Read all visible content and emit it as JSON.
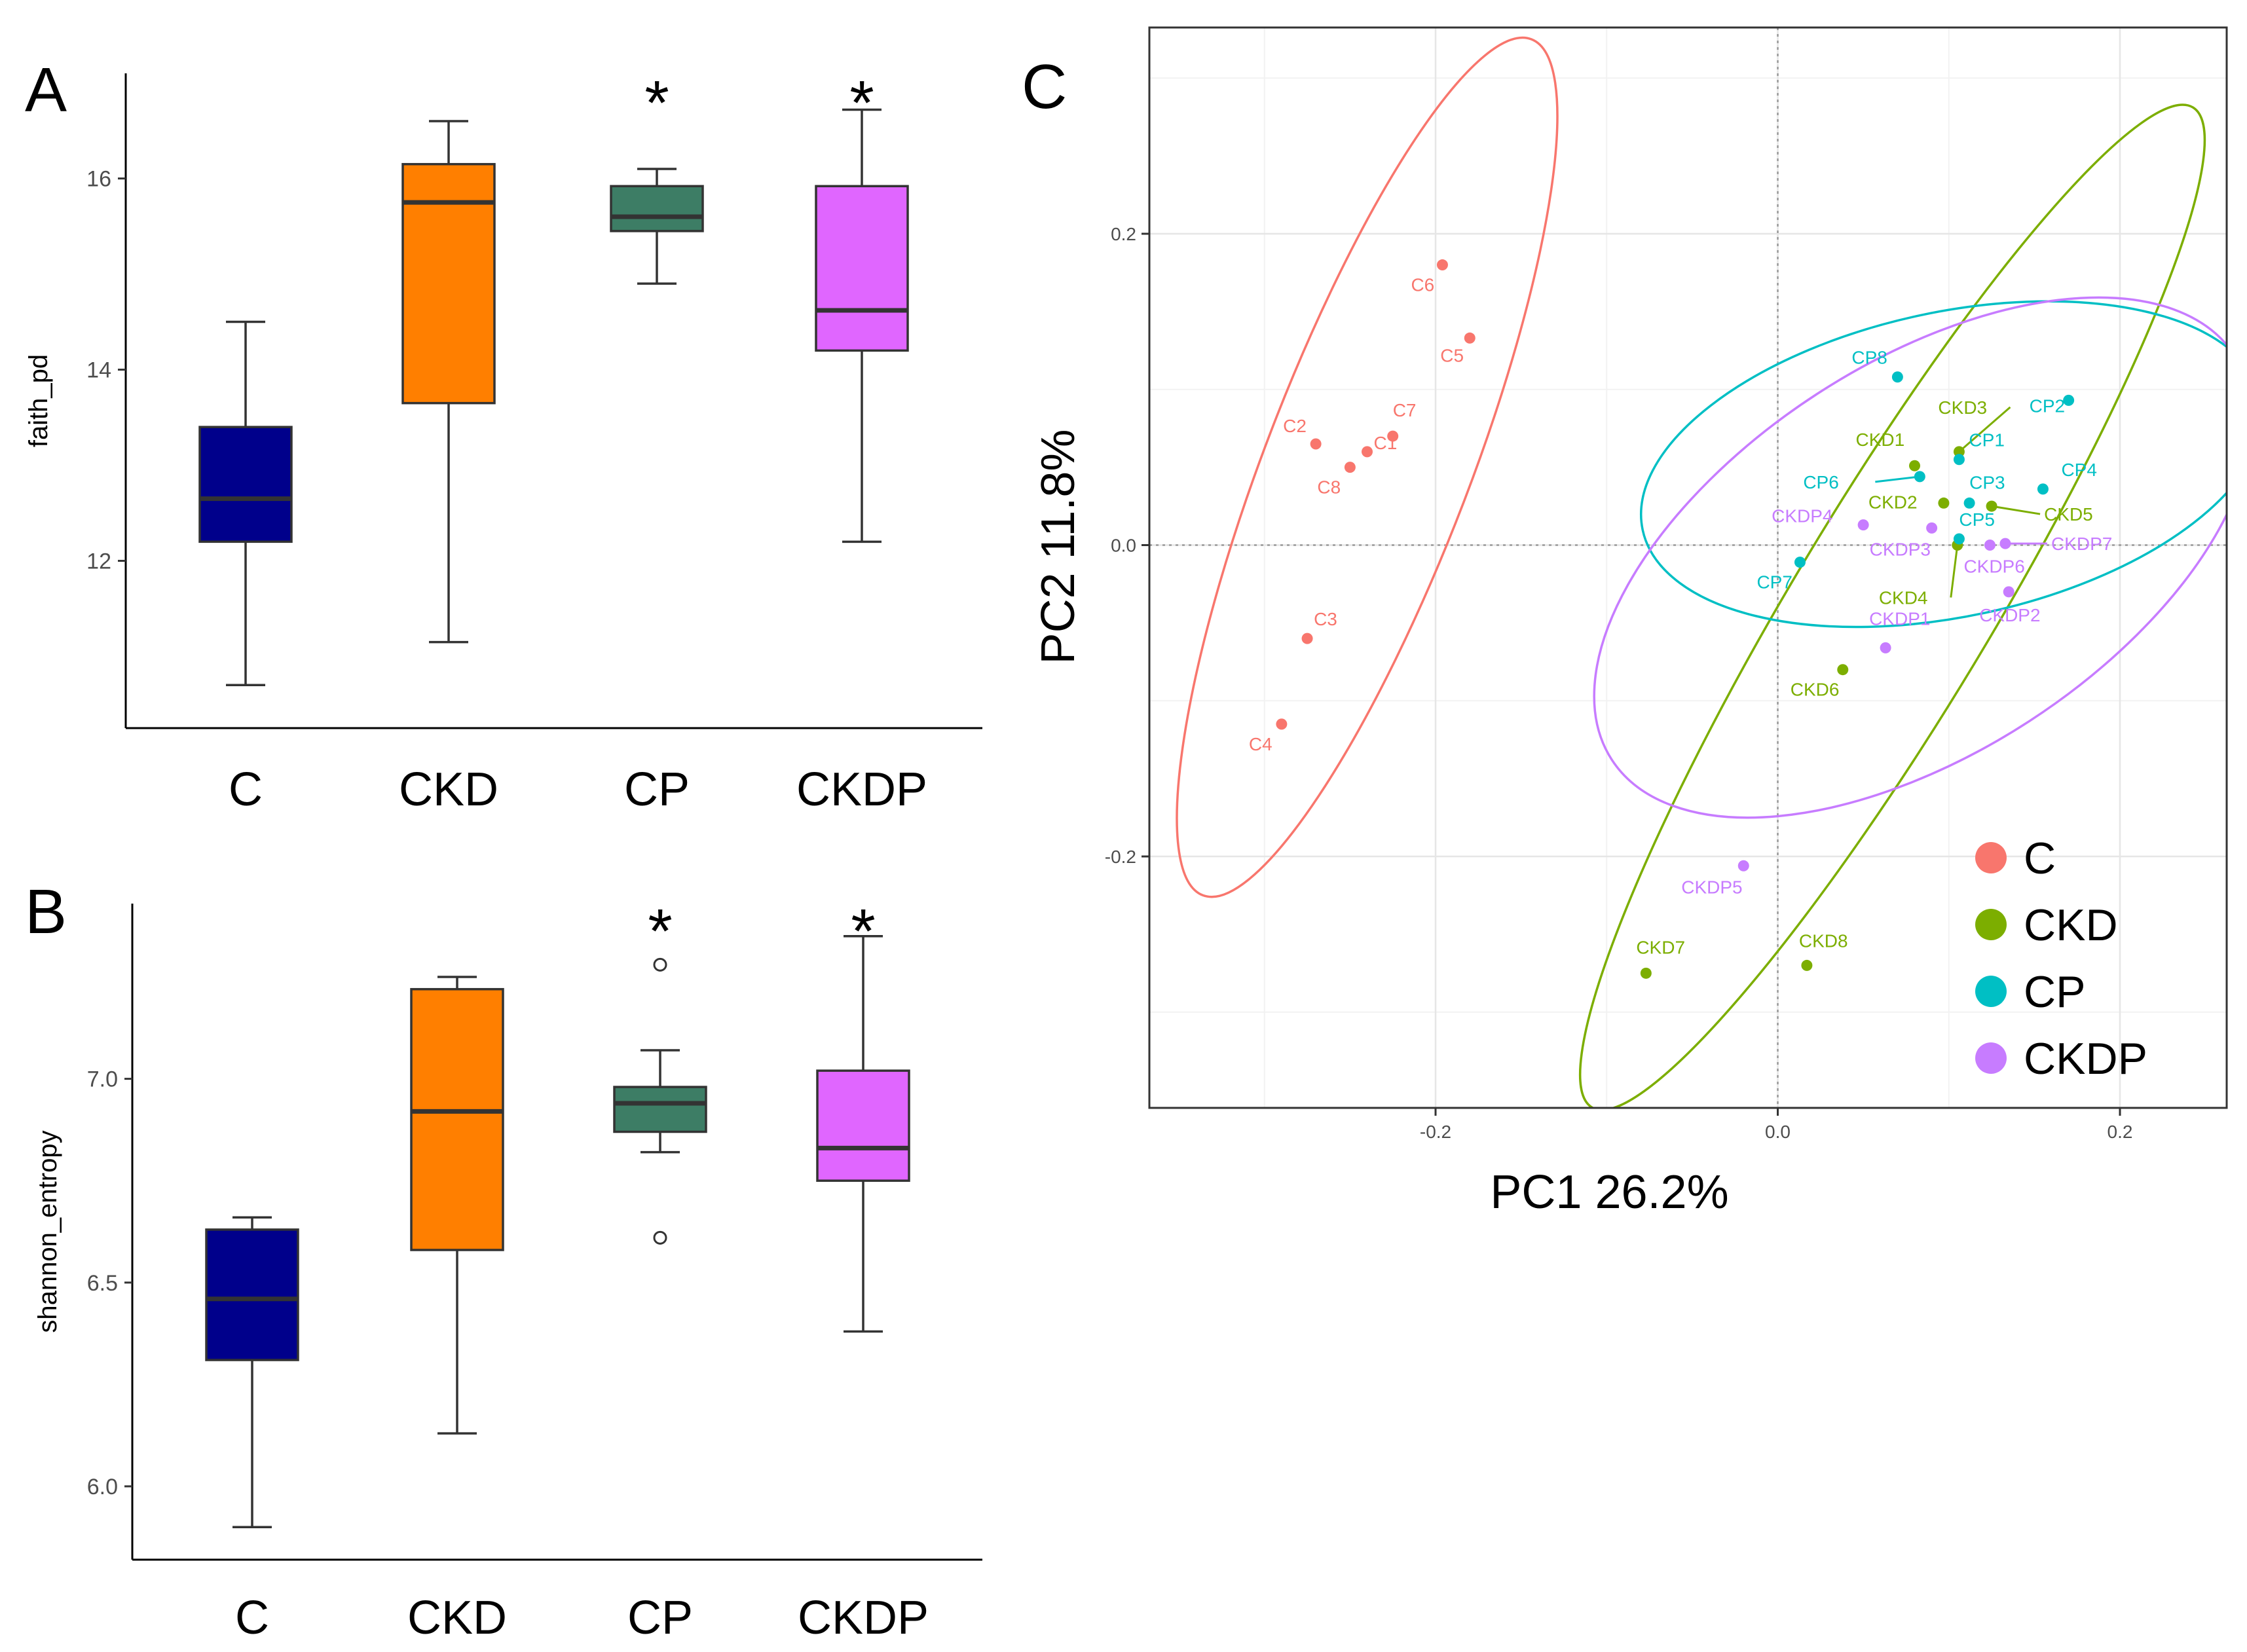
{
  "colors": {
    "C": "#f8766d",
    "CKD": "#7cae00",
    "CP": "#00bfc4",
    "CKDP": "#c77cff",
    "box_C": "#00008b",
    "box_CKD": "#ff7f00",
    "box_CP": "#3d7d65",
    "box_CKDP": "#e066ff"
  },
  "chart_data": [
    {
      "panel": "A",
      "type": "box",
      "ylabel": "faith_pd",
      "categories": [
        "C",
        "CKD",
        "CP",
        "CKDP"
      ],
      "ylim": [
        10.25,
        17.1
      ],
      "yticks": [
        12,
        14,
        16
      ],
      "significance": [
        "",
        "",
        "*",
        "*"
      ],
      "boxes": [
        {
          "min": 10.7,
          "q1": 12.2,
          "median": 12.65,
          "q3": 13.4,
          "max": 14.5,
          "outliers": []
        },
        {
          "min": 11.15,
          "q1": 13.65,
          "median": 15.75,
          "q3": 16.15,
          "max": 16.6,
          "outliers": []
        },
        {
          "min": 14.9,
          "q1": 15.45,
          "median": 15.6,
          "q3": 15.92,
          "max": 16.1,
          "outliers": []
        },
        {
          "min": 12.2,
          "q1": 14.2,
          "median": 14.62,
          "q3": 15.92,
          "max": 16.72,
          "outliers": []
        }
      ]
    },
    {
      "panel": "B",
      "type": "box",
      "ylabel": "shannon_entropy",
      "categories": [
        "C",
        "CKD",
        "CP",
        "CKDP"
      ],
      "ylim": [
        5.82,
        7.43
      ],
      "yticks": [
        6.0,
        6.5,
        7.0
      ],
      "ytick_labels": [
        "6.0",
        "6.5",
        "7.0"
      ],
      "significance": [
        "",
        "",
        "*",
        "*"
      ],
      "boxes": [
        {
          "min": 5.9,
          "q1": 6.31,
          "median": 6.46,
          "q3": 6.63,
          "max": 6.66,
          "outliers": []
        },
        {
          "min": 6.13,
          "q1": 6.58,
          "median": 6.92,
          "q3": 7.22,
          "max": 7.25,
          "outliers": []
        },
        {
          "min": 6.82,
          "q1": 6.87,
          "median": 6.94,
          "q3": 6.98,
          "max": 7.07,
          "outliers": [
            7.28,
            6.61
          ]
        },
        {
          "min": 6.38,
          "q1": 6.75,
          "median": 6.83,
          "q3": 7.02,
          "max": 7.35,
          "outliers": []
        }
      ]
    },
    {
      "panel": "C",
      "type": "scatter",
      "xlabel": "PC1 26.2%",
      "ylabel": "PC2 11.8%",
      "xlim": [
        -0.36,
        0.26
      ],
      "ylim": [
        -0.36,
        0.31
      ],
      "xticks": [
        -0.2,
        0.0,
        0.2
      ],
      "xtick_labels": [
        "-0.2",
        "0.0",
        "0.2"
      ],
      "yticks": [
        -0.2,
        0.0,
        0.2
      ],
      "ytick_labels": [
        "-0.2",
        "0.0",
        "0.2"
      ],
      "legend": [
        "C",
        "CKD",
        "CP",
        "CKDP"
      ],
      "points": [
        {
          "group": "C",
          "label": "C1",
          "x": -0.24,
          "y": 0.06
        },
        {
          "group": "C",
          "label": "C2",
          "x": -0.27,
          "y": 0.065
        },
        {
          "group": "C",
          "label": "C3",
          "x": -0.275,
          "y": -0.06
        },
        {
          "group": "C",
          "label": "C4",
          "x": -0.29,
          "y": -0.115
        },
        {
          "group": "C",
          "label": "C5",
          "x": -0.18,
          "y": 0.133
        },
        {
          "group": "C",
          "label": "C6",
          "x": -0.196,
          "y": 0.18
        },
        {
          "group": "C",
          "label": "C7",
          "x": -0.225,
          "y": 0.07
        },
        {
          "group": "C",
          "label": "C8",
          "x": -0.25,
          "y": 0.05
        },
        {
          "group": "CKD",
          "label": "CKD1",
          "x": 0.08,
          "y": 0.051
        },
        {
          "group": "CKD",
          "label": "CKD2",
          "x": 0.097,
          "y": 0.027
        },
        {
          "group": "CKD",
          "label": "CKD3",
          "x": 0.106,
          "y": 0.06
        },
        {
          "group": "CKD",
          "label": "CKD4",
          "x": 0.105,
          "y": 0.0
        },
        {
          "group": "CKD",
          "label": "CKD5",
          "x": 0.125,
          "y": 0.025
        },
        {
          "group": "CKD",
          "label": "CKD6",
          "x": 0.038,
          "y": -0.08
        },
        {
          "group": "CKD",
          "label": "CKD7",
          "x": -0.077,
          "y": -0.275
        },
        {
          "group": "CKD",
          "label": "CKD8",
          "x": 0.017,
          "y": -0.27
        },
        {
          "group": "CP",
          "label": "CP1",
          "x": 0.106,
          "y": 0.055
        },
        {
          "group": "CP",
          "label": "CP2",
          "x": 0.17,
          "y": 0.093
        },
        {
          "group": "CP",
          "label": "CP3",
          "x": 0.112,
          "y": 0.027
        },
        {
          "group": "CP",
          "label": "CP4",
          "x": 0.155,
          "y": 0.036
        },
        {
          "group": "CP",
          "label": "CP5",
          "x": 0.106,
          "y": 0.004
        },
        {
          "group": "CP",
          "label": "CP6",
          "x": 0.083,
          "y": 0.044
        },
        {
          "group": "CP",
          "label": "CP7",
          "x": 0.013,
          "y": -0.011
        },
        {
          "group": "CP",
          "label": "CP8",
          "x": 0.07,
          "y": 0.108
        },
        {
          "group": "CKDP",
          "label": "CKDP1",
          "x": 0.063,
          "y": -0.066
        },
        {
          "group": "CKDP",
          "label": "CKDP2",
          "x": 0.135,
          "y": -0.03
        },
        {
          "group": "CKDP",
          "label": "CKDP3",
          "x": 0.09,
          "y": 0.011
        },
        {
          "group": "CKDP",
          "label": "CKDP4",
          "x": 0.05,
          "y": 0.013
        },
        {
          "group": "CKDP",
          "label": "CKDP5",
          "x": -0.02,
          "y": -0.206
        },
        {
          "group": "CKDP",
          "label": "CKDP6",
          "x": 0.124,
          "y": 0.0
        },
        {
          "group": "CKDP",
          "label": "CKDP7",
          "x": 0.133,
          "y": 0.001
        }
      ],
      "ellipses": [
        {
          "group": "C",
          "cx": -0.24,
          "cy": 0.05,
          "rx": 0.268,
          "ry": 0.06,
          "angle_deg": 69
        },
        {
          "group": "CKD",
          "cx": 0.067,
          "cy": -0.04,
          "rx": 0.341,
          "ry": 0.058,
          "angle_deg": 59
        },
        {
          "group": "CP",
          "cx": 0.102,
          "cy": 0.052,
          "rx": 0.185,
          "ry": 0.089,
          "angle_deg": 12
        },
        {
          "group": "CKDP",
          "cx": 0.085,
          "cy": -0.008,
          "rx": 0.217,
          "ry": 0.114,
          "angle_deg": 33
        }
      ]
    }
  ]
}
